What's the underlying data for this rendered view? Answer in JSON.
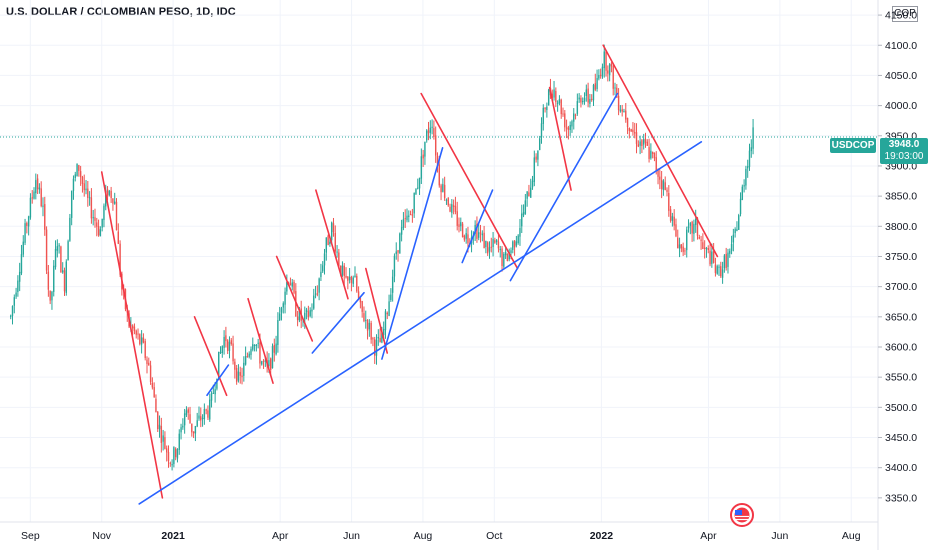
{
  "chart_data": {
    "type": "candlestick",
    "title": "U.S. DOLLAR / COLOMBIAN PESO, 1D, IDC",
    "currency": "COP",
    "symbol": "USDCOP",
    "last_price": "3948.0",
    "countdown": "19:03:00",
    "ylim": [
      3310,
      4175
    ],
    "y_ticks": [
      "4150.0",
      "4100.0",
      "4050.0",
      "4000.0",
      "3950.0",
      "3900.0",
      "3850.0",
      "3800.0",
      "3750.0",
      "3700.0",
      "3650.0",
      "3600.0",
      "3550.0",
      "3500.0",
      "3450.0",
      "3400.0",
      "3350.0"
    ],
    "x_ticks": [
      {
        "label": "Sep",
        "bold": false,
        "t": 0.55
      },
      {
        "label": "Nov",
        "bold": false,
        "t": 2.55
      },
      {
        "label": "2021",
        "bold": true,
        "t": 4.55
      },
      {
        "label": "Apr",
        "bold": false,
        "t": 7.55
      },
      {
        "label": "Jun",
        "bold": false,
        "t": 9.55
      },
      {
        "label": "Aug",
        "bold": false,
        "t": 11.55
      },
      {
        "label": "Oct",
        "bold": false,
        "t": 13.55
      },
      {
        "label": "2022",
        "bold": true,
        "t": 16.55
      },
      {
        "label": "Apr",
        "bold": false,
        "t": 19.55
      },
      {
        "label": "Jun",
        "bold": false,
        "t": 21.55
      },
      {
        "label": "Aug",
        "bold": false,
        "t": 23.55
      }
    ],
    "path": [
      [
        0.0,
        3650
      ],
      [
        0.2,
        3720
      ],
      [
        0.4,
        3790
      ],
      [
        0.7,
        3880
      ],
      [
        0.9,
        3830
      ],
      [
        1.1,
        3660
      ],
      [
        1.3,
        3780
      ],
      [
        1.5,
        3700
      ],
      [
        1.7,
        3860
      ],
      [
        1.9,
        3900
      ],
      [
        2.1,
        3850
      ],
      [
        2.3,
        3820
      ],
      [
        2.5,
        3790
      ],
      [
        2.7,
        3860
      ],
      [
        2.9,
        3850
      ],
      [
        3.1,
        3700
      ],
      [
        3.3,
        3640
      ],
      [
        3.5,
        3620
      ],
      [
        3.7,
        3600
      ],
      [
        3.9,
        3560
      ],
      [
        4.1,
        3480
      ],
      [
        4.3,
        3440
      ],
      [
        4.5,
        3410
      ],
      [
        4.7,
        3440
      ],
      [
        4.9,
        3500
      ],
      [
        5.1,
        3460
      ],
      [
        5.3,
        3480
      ],
      [
        5.6,
        3500
      ],
      [
        5.8,
        3570
      ],
      [
        6.0,
        3620
      ],
      [
        6.2,
        3590
      ],
      [
        6.4,
        3540
      ],
      [
        6.6,
        3580
      ],
      [
        6.8,
        3620
      ],
      [
        7.0,
        3580
      ],
      [
        7.2,
        3560
      ],
      [
        7.4,
        3600
      ],
      [
        7.6,
        3680
      ],
      [
        7.8,
        3720
      ],
      [
        8.0,
        3660
      ],
      [
        8.2,
        3640
      ],
      [
        8.4,
        3660
      ],
      [
        8.6,
        3700
      ],
      [
        8.8,
        3760
      ],
      [
        9.0,
        3800
      ],
      [
        9.2,
        3740
      ],
      [
        9.4,
        3700
      ],
      [
        9.6,
        3720
      ],
      [
        9.8,
        3660
      ],
      [
        10.0,
        3640
      ],
      [
        10.2,
        3600
      ],
      [
        10.4,
        3610
      ],
      [
        10.6,
        3680
      ],
      [
        10.8,
        3760
      ],
      [
        11.0,
        3800
      ],
      [
        11.2,
        3820
      ],
      [
        11.4,
        3870
      ],
      [
        11.6,
        3940
      ],
      [
        11.8,
        3980
      ],
      [
        12.0,
        3880
      ],
      [
        12.2,
        3850
      ],
      [
        12.4,
        3820
      ],
      [
        12.6,
        3800
      ],
      [
        12.8,
        3780
      ],
      [
        13.0,
        3800
      ],
      [
        13.2,
        3780
      ],
      [
        13.4,
        3760
      ],
      [
        13.6,
        3770
      ],
      [
        13.8,
        3740
      ],
      [
        14.0,
        3760
      ],
      [
        14.2,
        3790
      ],
      [
        14.4,
        3830
      ],
      [
        14.6,
        3880
      ],
      [
        14.8,
        3940
      ],
      [
        15.0,
        4010
      ],
      [
        15.2,
        4030
      ],
      [
        15.4,
        4000
      ],
      [
        15.6,
        3960
      ],
      [
        15.8,
        3990
      ],
      [
        16.0,
        4020
      ],
      [
        16.2,
        4010
      ],
      [
        16.4,
        4030
      ],
      [
        16.6,
        4080
      ],
      [
        16.8,
        4060
      ],
      [
        17.0,
        4010
      ],
      [
        17.2,
        3990
      ],
      [
        17.4,
        3960
      ],
      [
        17.6,
        3940
      ],
      [
        17.8,
        3930
      ],
      [
        18.0,
        3910
      ],
      [
        18.2,
        3880
      ],
      [
        18.4,
        3850
      ],
      [
        18.6,
        3790
      ],
      [
        18.8,
        3760
      ],
      [
        19.0,
        3790
      ],
      [
        19.2,
        3800
      ],
      [
        19.4,
        3760
      ],
      [
        19.6,
        3750
      ],
      [
        19.8,
        3720
      ],
      [
        20.0,
        3740
      ],
      [
        20.2,
        3760
      ],
      [
        20.4,
        3820
      ],
      [
        20.6,
        3900
      ],
      [
        20.8,
        3950
      ]
    ],
    "trendlines": [
      {
        "color": "red",
        "from": [
          2.55,
          3890
        ],
        "to": [
          4.25,
          3350
        ]
      },
      {
        "color": "red",
        "from": [
          5.15,
          3650
        ],
        "to": [
          6.05,
          3520
        ]
      },
      {
        "color": "red",
        "from": [
          6.65,
          3680
        ],
        "to": [
          7.35,
          3540
        ]
      },
      {
        "color": "red",
        "from": [
          7.45,
          3750
        ],
        "to": [
          8.45,
          3610
        ]
      },
      {
        "color": "red",
        "from": [
          8.55,
          3860
        ],
        "to": [
          9.45,
          3680
        ]
      },
      {
        "color": "red",
        "from": [
          9.95,
          3730
        ],
        "to": [
          10.55,
          3590
        ]
      },
      {
        "color": "red",
        "from": [
          11.5,
          4020
        ],
        "to": [
          14.2,
          3730
        ]
      },
      {
        "color": "red",
        "from": [
          15.1,
          4030
        ],
        "to": [
          15.7,
          3860
        ]
      },
      {
        "color": "red",
        "from": [
          16.6,
          4100
        ],
        "to": [
          19.8,
          3750
        ]
      },
      {
        "color": "blue",
        "from": [
          3.6,
          3340
        ],
        "to": [
          19.35,
          3940
        ]
      },
      {
        "color": "blue",
        "from": [
          5.5,
          3520
        ],
        "to": [
          6.1,
          3570
        ]
      },
      {
        "color": "blue",
        "from": [
          8.45,
          3590
        ],
        "to": [
          9.9,
          3690
        ]
      },
      {
        "color": "blue",
        "from": [
          10.4,
          3580
        ],
        "to": [
          12.1,
          3930
        ]
      },
      {
        "color": "blue",
        "from": [
          12.65,
          3740
        ],
        "to": [
          13.5,
          3860
        ]
      },
      {
        "color": "blue",
        "from": [
          14.0,
          3710
        ],
        "to": [
          17.0,
          4020
        ]
      }
    ],
    "grid": true,
    "price_line": "3948.0"
  },
  "icons": {
    "flag": "us-flag-icon"
  },
  "colors": {
    "up": "#26a69a",
    "down": "#ef5350",
    "red_line": "#f23645",
    "blue_line": "#2962ff"
  }
}
